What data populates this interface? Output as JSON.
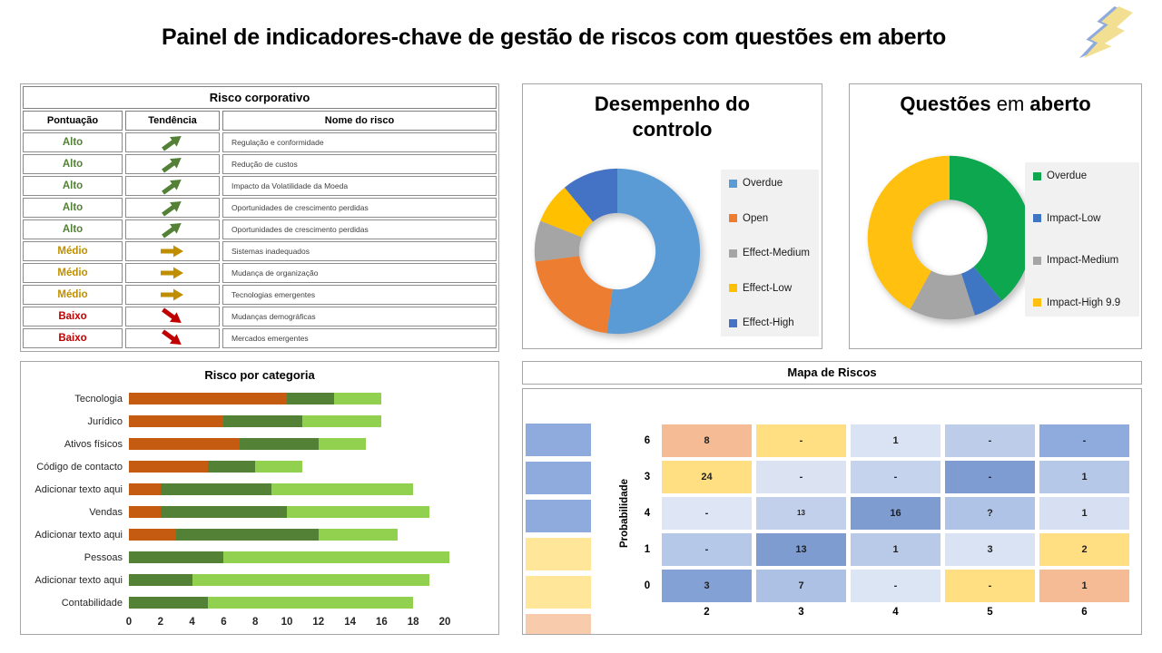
{
  "page": {
    "title": "Painel de indicadores-chave de gestão de riscos com questões em aberto"
  },
  "lightning_icon": {
    "front_color": "#F3DF92",
    "back_color": "#8FAADC"
  },
  "corporate_risk_table": {
    "title": "Risco corporativo",
    "columns": [
      "Pontuação",
      "Tendência",
      "Nome do risco"
    ],
    "levels": {
      "Alto": "#538135",
      "Médio": "#BF8F00",
      "Baixo": "#C00000"
    },
    "rows": [
      {
        "score": "Alto",
        "trend": "up",
        "name": "Regulação e conformidade"
      },
      {
        "score": "Alto",
        "trend": "up",
        "name": "Redução de custos"
      },
      {
        "score": "Alto",
        "trend": "up",
        "name": "Impacto da Volatilidade da Moeda"
      },
      {
        "score": "Alto",
        "trend": "up",
        "name": "Oportunidades de crescimento perdidas"
      },
      {
        "score": "Alto",
        "trend": "up",
        "name": "Oportunidades de crescimento perdidas"
      },
      {
        "score": "Médio",
        "trend": "flat",
        "name": "Sistemas inadequados"
      },
      {
        "score": "Médio",
        "trend": "flat",
        "name": "Mudança de organização"
      },
      {
        "score": "Médio",
        "trend": "flat",
        "name": "Tecnologias emergentes"
      },
      {
        "score": "Baixo",
        "trend": "down",
        "name": "Mudanças demográficas"
      },
      {
        "score": "Baixo",
        "trend": "down",
        "name": "Mercados emergentes"
      }
    ]
  },
  "chart_data": [
    {
      "id": "control_performance",
      "type": "pie",
      "subtype": "donut",
      "title": "Desempenho do controlo",
      "title_lines": [
        "Desempenho do",
        "controlo"
      ],
      "legend_position": "right",
      "labels": [
        "Overdue",
        "Open",
        "Effect-Medium",
        "Effect-Low",
        "Effect-High"
      ],
      "values": [
        52,
        21,
        8,
        8,
        11
      ],
      "colors": [
        "#5B9BD5",
        "#ED7D31",
        "#A5A5A5",
        "#FFC000",
        "#4472C4"
      ]
    },
    {
      "id": "open_issues",
      "type": "pie",
      "subtype": "donut",
      "title": "Questões em aberto",
      "title_parts": {
        "bold_1": "Questões",
        "regular": "em",
        "bold_2": "aberto"
      },
      "legend_position": "right",
      "labels": [
        "Overdue",
        "Impact-Low",
        "Impact-Medium",
        "Impact-High 9.9"
      ],
      "values": [
        39,
        6,
        13,
        42
      ],
      "colors": [
        "#0DA750",
        "#3F76C4",
        "#A5A5A5",
        "#FFC010"
      ]
    },
    {
      "id": "risk_by_category",
      "type": "bar",
      "subtype": "stacked-horizontal",
      "title": "Risco por categoria",
      "categories": [
        "Tecnologia",
        "Jurídico",
        "Ativos físicos",
        "Código de contacto",
        "Adicionar texto aqui",
        "Vendas",
        "Adicionar texto aqui",
        "Pessoas",
        "Adicionar texto aqui",
        "Contabilidade"
      ],
      "series": [
        {
          "name": "segmento-laranja",
          "color": "#C55A11",
          "values": [
            10,
            6,
            7,
            5,
            2,
            2,
            3,
            0,
            0,
            0
          ]
        },
        {
          "name": "segmento-verde-escuro",
          "color": "#538135",
          "values": [
            3,
            5,
            5,
            3,
            7,
            8,
            9,
            6,
            4,
            5
          ]
        },
        {
          "name": "segmento-verde-claro",
          "color": "#92D050",
          "values": [
            3,
            5,
            3,
            3,
            9,
            9,
            5,
            14.3,
            15,
            13
          ]
        }
      ],
      "xlim": [
        0,
        20
      ],
      "xticks": [
        0,
        2,
        4,
        6,
        8,
        10,
        12,
        14,
        16,
        18,
        20
      ],
      "grid": false,
      "legend": false
    },
    {
      "id": "risk_map",
      "type": "heatmap",
      "title": "Mapa de Riscos",
      "ylabel": "Probabilidade",
      "row_labels": [
        "6",
        "3",
        "4",
        "1",
        "0"
      ],
      "col_labels": [
        "2",
        "3",
        "4",
        "5",
        "6"
      ],
      "cells": [
        [
          {
            "v": "8",
            "bg": "#F4BB95"
          },
          {
            "v": "-",
            "bg": "#FFDF82"
          },
          {
            "v": "1",
            "bg": "#DAE3F3"
          },
          {
            "v": "-",
            "bg": "#BDCCE9"
          },
          {
            "v": "-",
            "bg": "#8FAADC"
          }
        ],
        [
          {
            "v": "24",
            "bg": "#FFDF82"
          },
          {
            "v": "-",
            "bg": "#DBE3F3"
          },
          {
            "v": "-",
            "bg": "#C6D3ED"
          },
          {
            "v": "-",
            "bg": "#7E9BD2"
          },
          {
            "v": "1",
            "bg": "#B6C8E8"
          }
        ],
        [
          {
            "v": "-",
            "bg": "#DEE6F5"
          },
          {
            "v": "13",
            "bg": "#C2D0EB",
            "small": true
          },
          {
            "v": "16",
            "bg": "#7E9CD0"
          },
          {
            "v": "?",
            "bg": "#AFC3E6"
          },
          {
            "v": "1",
            "bg": "#D6E0F2"
          }
        ],
        [
          {
            "v": "-",
            "bg": "#B6C8E7"
          },
          {
            "v": "13",
            "bg": "#7E9CD0"
          },
          {
            "v": "1",
            "bg": "#B9CAE8"
          },
          {
            "v": "3",
            "bg": "#DAE3F3"
          },
          {
            "v": "2",
            "bg": "#FFDF82"
          }
        ],
        [
          {
            "v": "3",
            "bg": "#84A1D5"
          },
          {
            "v": "7",
            "bg": "#ACC1E4"
          },
          {
            "v": "-",
            "bg": "#DCE5F4"
          },
          {
            "v": "-",
            "bg": "#FFDF82"
          },
          {
            "v": "1",
            "bg": "#F4BB95"
          }
        ]
      ],
      "left_swatches": [
        "#8FAADC",
        "#8FAADC",
        "#8FAADC",
        "#FFE699",
        "#FFE699",
        "#F8CBAD"
      ]
    }
  ]
}
